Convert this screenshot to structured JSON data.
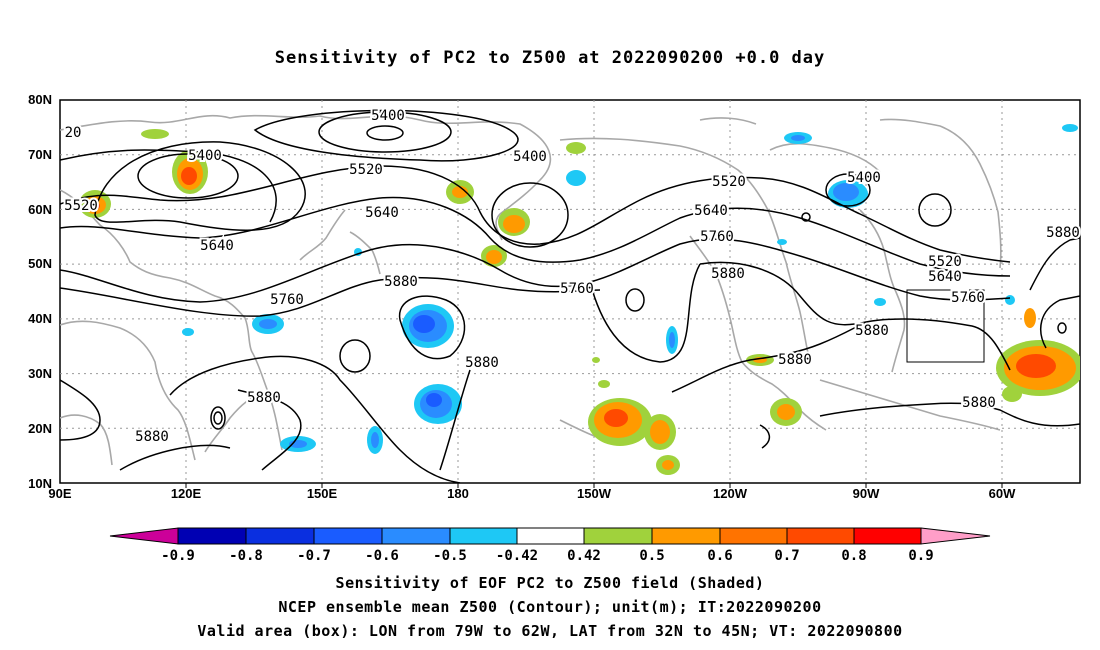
{
  "title": "Sensitivity of PC2 to Z500 at 2022090200 +0.0 day",
  "map": {
    "lat_labels": [
      "80N",
      "70N",
      "60N",
      "50N",
      "40N",
      "30N",
      "20N",
      "10N"
    ],
    "lon_labels": [
      "90E",
      "120E",
      "150E",
      "180",
      "150W",
      "120W",
      "90W",
      "60W"
    ],
    "contour_labels": [
      "5400",
      "5400",
      "5400",
      "5400",
      "20",
      "5520",
      "5520",
      "5520",
      "5520",
      "5640",
      "5640",
      "5640",
      "5640",
      "5760",
      "5760",
      "5760",
      "5760",
      "5880",
      "5880",
      "5880",
      "5880",
      "5880",
      "5880",
      "5880",
      "5880",
      "5880",
      "5880"
    ],
    "valid_box": {
      "lon_from": "79W",
      "lon_to": "62W",
      "lat_from": "32N",
      "lat_to": "45N"
    }
  },
  "colorbar": {
    "labels": [
      "-0.9",
      "-0.8",
      "-0.7",
      "-0.6",
      "-0.5",
      "-0.42",
      "0.42",
      "0.5",
      "0.6",
      "0.7",
      "0.8",
      "0.9"
    ],
    "colors": [
      "#cc0099",
      "#0000b3",
      "#0a2fe0",
      "#1a5cff",
      "#2a8cff",
      "#1ec8f5",
      "#ffffff",
      "#a0d23c",
      "#ff9a00",
      "#ff7300",
      "#ff4a00",
      "#ff0000",
      "#ff9ec8"
    ]
  },
  "footer": {
    "line1": "Sensitivity of EOF PC2 to Z500 field (Shaded)",
    "line2": "NCEP ensemble mean Z500 (Contour); unit(m); IT:2022090200",
    "line3": "Valid area (box): LON from 79W to 62W, LAT from 32N to 45N; VT: 2022090800"
  }
}
